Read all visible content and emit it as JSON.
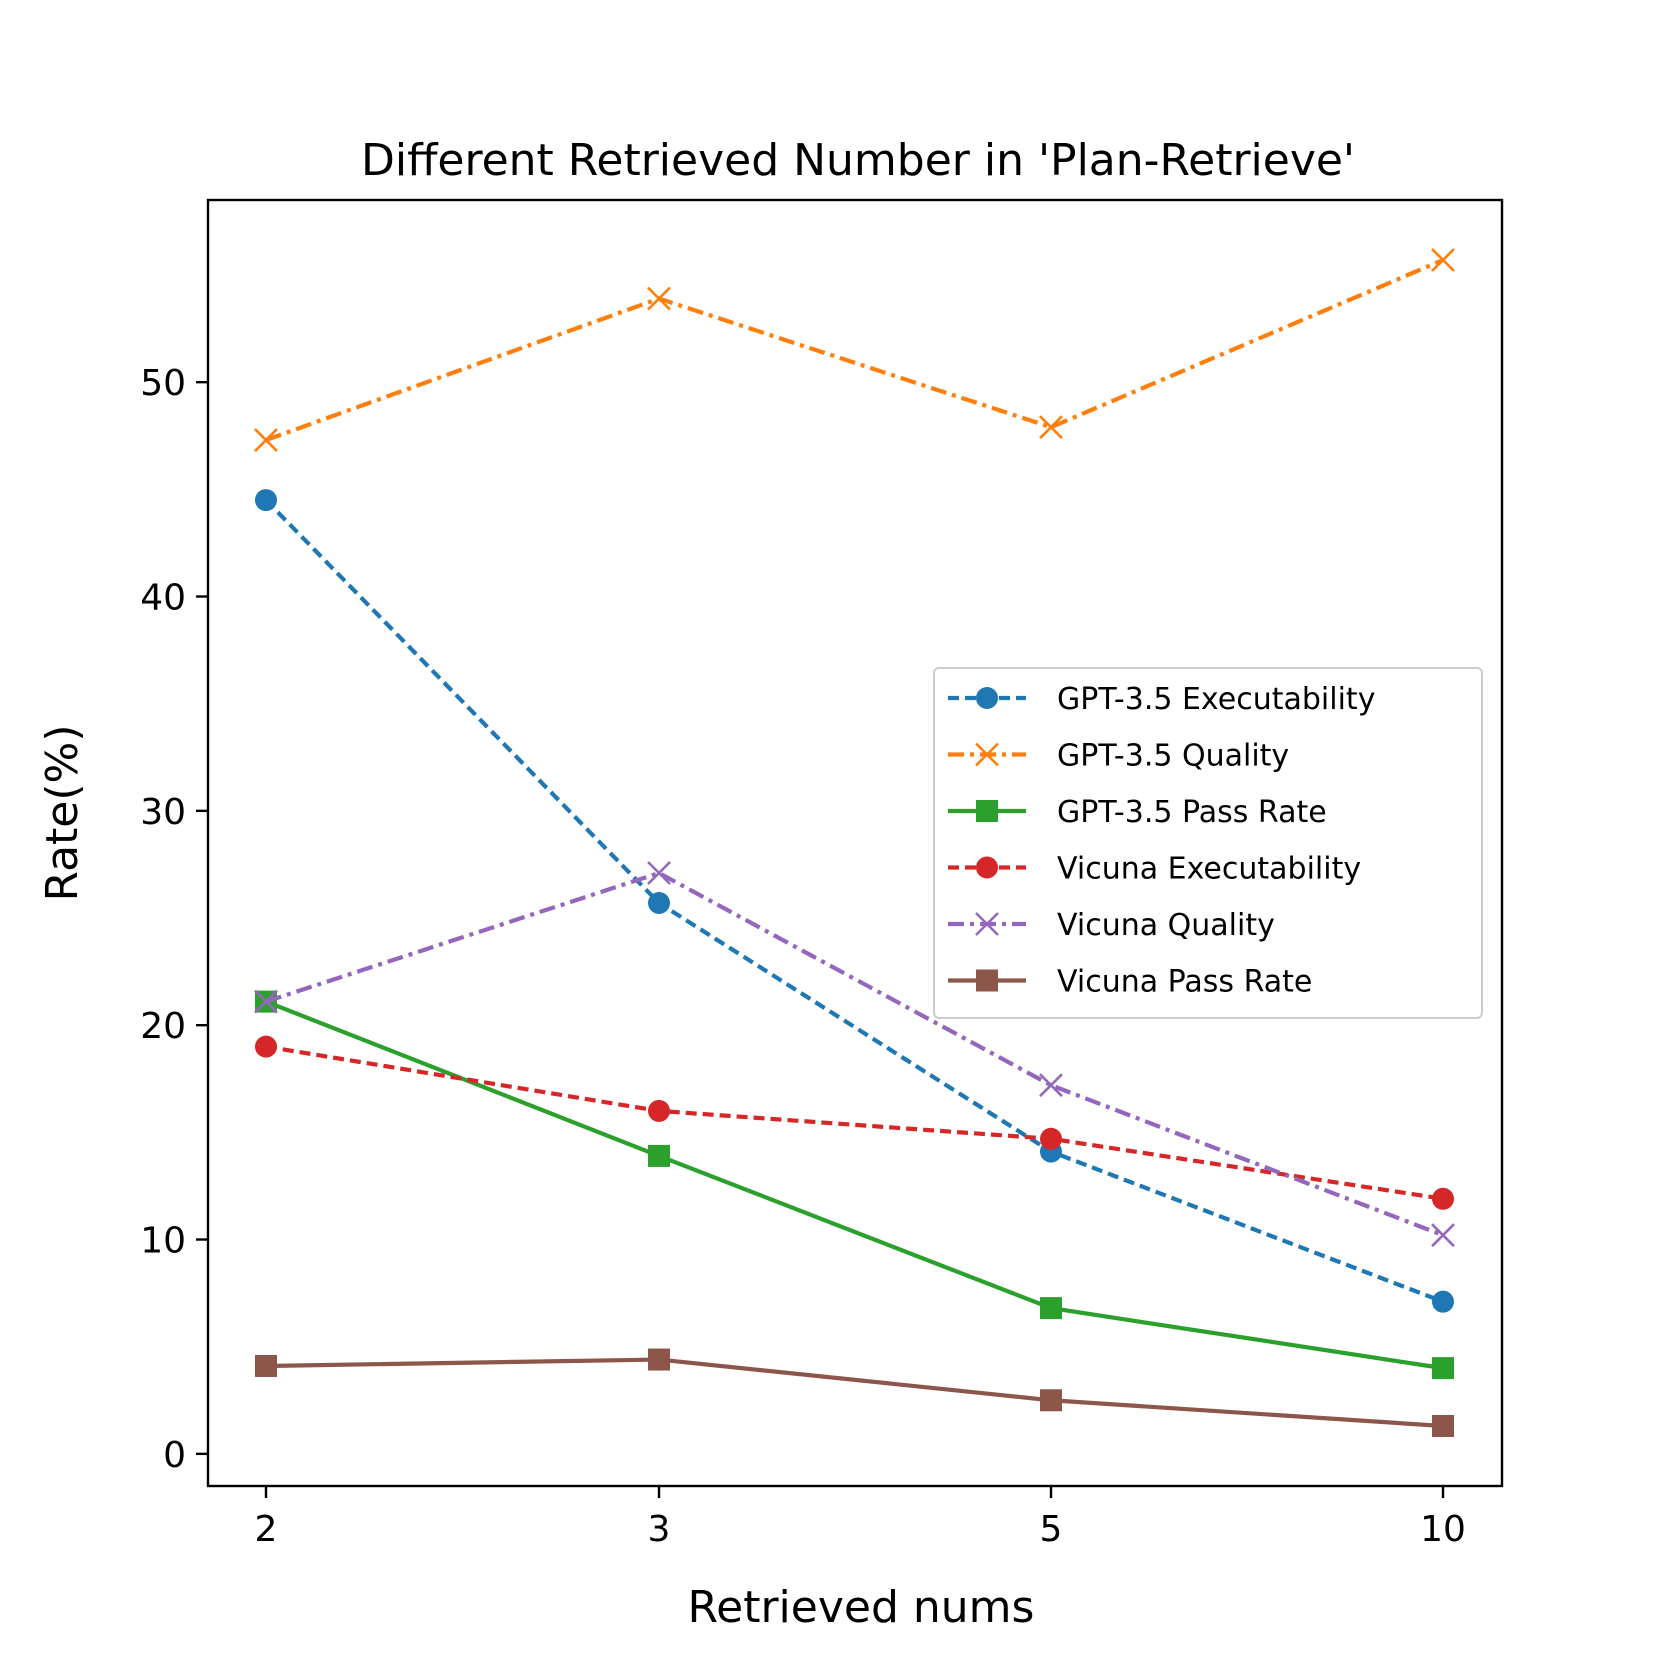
{
  "chart_data": {
    "type": "line",
    "title": "Different Retrieved Number in 'Plan-Retrieve'",
    "xlabel": "Retrieved nums",
    "ylabel": "Rate(%)",
    "categories": [
      "2",
      "3",
      "5",
      "10"
    ],
    "yticks": [
      "0",
      "10",
      "20",
      "30",
      "40",
      "50"
    ],
    "ylim": [
      -1.5,
      58.5
    ],
    "legend_position": "center-right",
    "series": [
      {
        "name": "GPT-3.5 Executability",
        "color": "#1f77b4",
        "dash": "dashed",
        "marker": "circle",
        "values": [
          44.5,
          25.7,
          14.1,
          7.1
        ]
      },
      {
        "name": "GPT-3.5 Quality",
        "color": "#ff7f0e",
        "dash": "dashdot",
        "marker": "x",
        "values": [
          47.3,
          53.9,
          47.9,
          55.7
        ]
      },
      {
        "name": "GPT-3.5 Pass Rate",
        "color": "#2ca02c",
        "dash": "solid",
        "marker": "square",
        "values": [
          21.1,
          13.9,
          6.8,
          4.0
        ]
      },
      {
        "name": "Vicuna Executability",
        "color": "#d62728",
        "dash": "dashed",
        "marker": "circle",
        "values": [
          19.0,
          16.0,
          14.7,
          11.9
        ]
      },
      {
        "name": "Vicuna Quality",
        "color": "#9467bd",
        "dash": "dashdot",
        "marker": "x",
        "values": [
          21.1,
          27.1,
          17.2,
          10.2
        ]
      },
      {
        "name": "Vicuna Pass Rate",
        "color": "#8c564b",
        "dash": "solid",
        "marker": "square",
        "values": [
          4.1,
          4.4,
          2.5,
          1.3
        ]
      }
    ]
  }
}
